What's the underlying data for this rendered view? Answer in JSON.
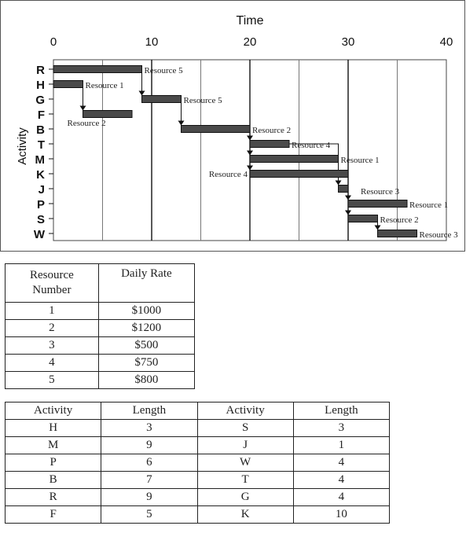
{
  "chart_data": {
    "type": "gantt",
    "title": "Time",
    "ylabel": "Activity",
    "xlim": [
      0,
      40
    ],
    "x_ticks": [
      0,
      10,
      20,
      30,
      40
    ],
    "grid": true,
    "rows": [
      "R",
      "H",
      "G",
      "F",
      "B",
      "T",
      "M",
      "K",
      "J",
      "P",
      "S",
      "W"
    ],
    "bars": [
      {
        "activity": "R",
        "start": 0,
        "end": 9,
        "label": "Resource 5"
      },
      {
        "activity": "H",
        "start": 0,
        "end": 3,
        "label": "Resource 1"
      },
      {
        "activity": "G",
        "start": 9,
        "end": 13,
        "label": "Resource 5"
      },
      {
        "activity": "F",
        "start": 3,
        "end": 8,
        "label": "Resource 2"
      },
      {
        "activity": "B",
        "start": 13,
        "end": 20,
        "label": "Resource 2"
      },
      {
        "activity": "T",
        "start": 20,
        "end": 24,
        "label": "Resource 4"
      },
      {
        "activity": "M",
        "start": 20,
        "end": 29,
        "label": "Resource 1"
      },
      {
        "activity": "K",
        "start": 20,
        "end": 30,
        "label": "Resource 4"
      },
      {
        "activity": "J",
        "start": 29,
        "end": 30,
        "label": "Resource 3"
      },
      {
        "activity": "P",
        "start": 30,
        "end": 36,
        "label": "Resource 1"
      },
      {
        "activity": "S",
        "start": 30,
        "end": 33,
        "label": "Resource 2"
      },
      {
        "activity": "W",
        "start": 33,
        "end": 37,
        "label": "Resource 3"
      }
    ],
    "dependencies": [
      {
        "from": "H",
        "to": "F"
      },
      {
        "from": "R",
        "to": "G"
      },
      {
        "from": "G",
        "to": "B"
      },
      {
        "from": "B",
        "to": "T"
      },
      {
        "from": "B",
        "to": "M"
      },
      {
        "from": "B",
        "to": "K"
      },
      {
        "from": "T",
        "to": "J"
      },
      {
        "from": "K",
        "to": "P"
      },
      {
        "from": "K",
        "to": "S"
      },
      {
        "from": "S",
        "to": "W"
      }
    ]
  },
  "resource_table": {
    "headers": [
      "Resource Number",
      "Daily Rate"
    ],
    "rows": [
      [
        "1",
        "$1000"
      ],
      [
        "2",
        "$1200"
      ],
      [
        "3",
        "$500"
      ],
      [
        "4",
        "$750"
      ],
      [
        "5",
        "$800"
      ]
    ]
  },
  "length_table": {
    "headers": [
      "Activity",
      "Length",
      "Activity",
      "Length"
    ],
    "rows": [
      [
        "H",
        "3",
        "S",
        "3"
      ],
      [
        "M",
        "9",
        "J",
        "1"
      ],
      [
        "P",
        "6",
        "W",
        "4"
      ],
      [
        "B",
        "7",
        "T",
        "4"
      ],
      [
        "R",
        "9",
        "G",
        "4"
      ],
      [
        "F",
        "5",
        "K",
        "10"
      ]
    ]
  }
}
